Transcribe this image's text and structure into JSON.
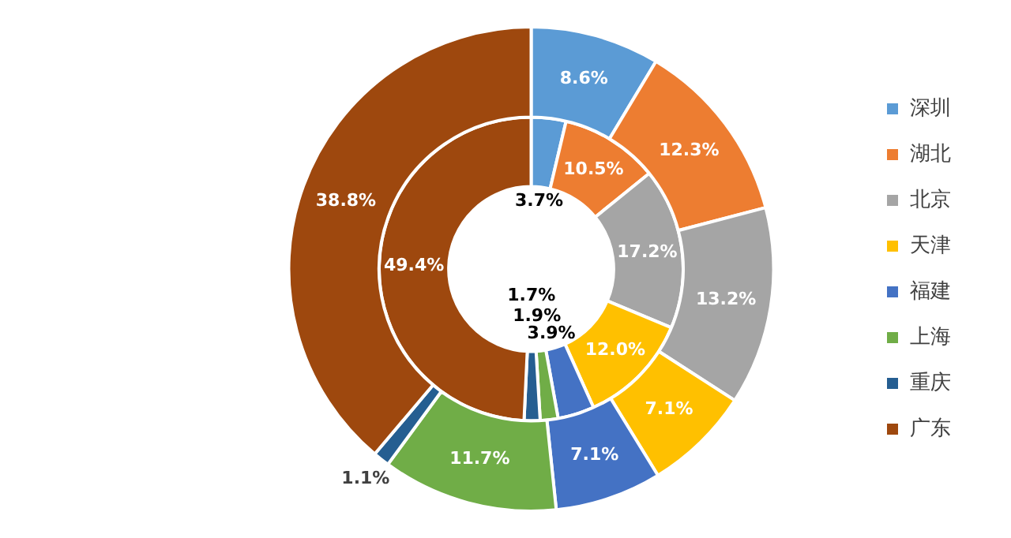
{
  "chart_data": {
    "type": "donut",
    "categories": [
      "深圳",
      "湖北",
      "北京",
      "天津",
      "福建",
      "上海",
      "重庆",
      "广东"
    ],
    "colors": [
      "#5b9bd5",
      "#ed7d31",
      "#a5a5a5",
      "#ffc000",
      "#4472c4",
      "#70ad47",
      "#255e91",
      "#9e480e"
    ],
    "series": [
      {
        "values": [
          8.6,
          12.3,
          13.2,
          7.1,
          7.1,
          11.7,
          1.1,
          38.8
        ],
        "value_labels": [
          "8.6%",
          "12.3%",
          "13.2%",
          "7.1%",
          "7.1%",
          "11.7%",
          "1.1%",
          "38.8%"
        ]
      },
      {
        "values": [
          3.7,
          10.5,
          17.2,
          12.0,
          3.9,
          1.9,
          1.7,
          49.4
        ],
        "value_labels": [
          "3.7%",
          "10.5%",
          "17.2%",
          "12.0%",
          "3.9%",
          "1.9%",
          "1.7%",
          "49.4%"
        ]
      }
    ],
    "legend": "right"
  }
}
